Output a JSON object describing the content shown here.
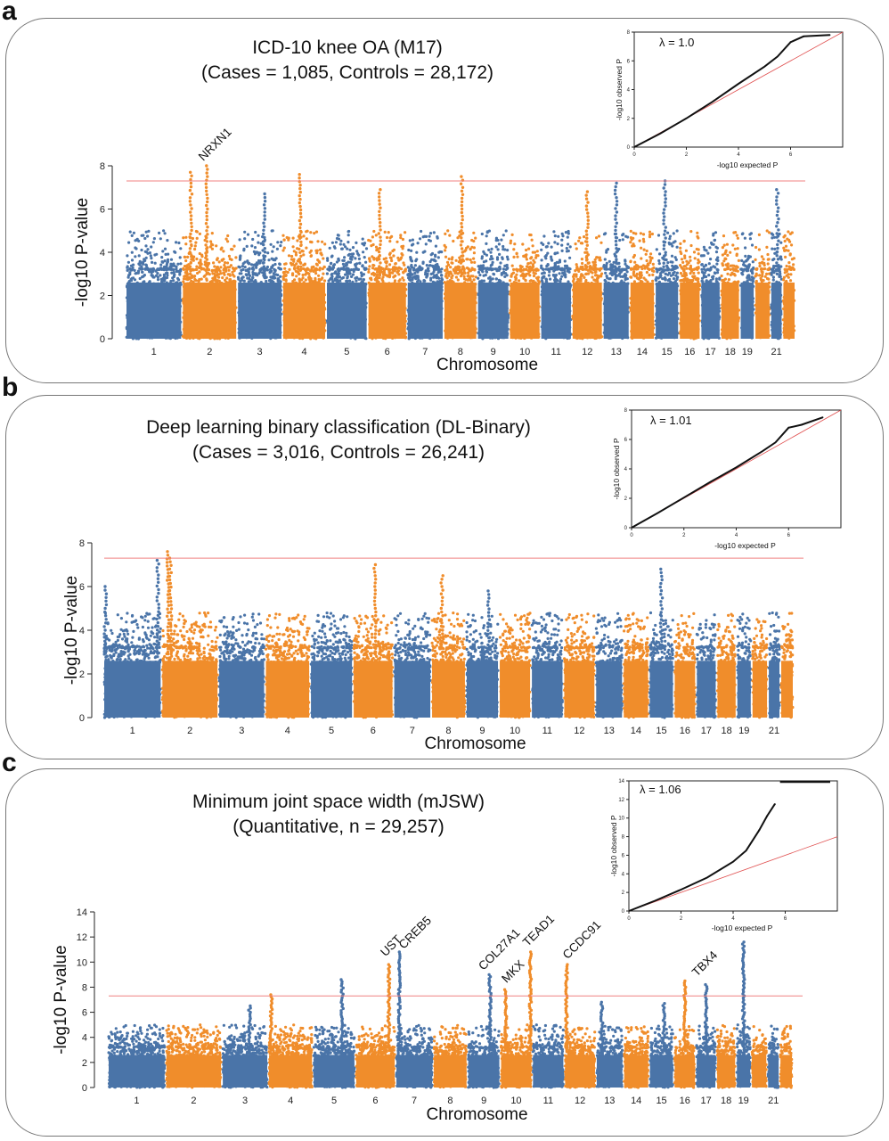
{
  "chart_data": [
    {
      "panel_label": "a",
      "type": "scatter",
      "subtype": "manhattan",
      "title": "ICD-10 knee OA (M17)",
      "subtitle": "(Cases = 1,085, Controls = 28,172)",
      "xlabel": "Chromosome",
      "ylabel": "-log10 P-value",
      "ylim": [
        0,
        8
      ],
      "yticks": [
        0,
        2,
        4,
        6,
        8
      ],
      "x_tick_labels": [
        "1",
        "2",
        "3",
        "4",
        "5",
        "6",
        "7",
        "8",
        "9",
        "10",
        "11",
        "12",
        "13",
        "14",
        "15",
        "16",
        "17",
        "18",
        "19",
        "21"
      ],
      "significance_threshold": 7.3,
      "series_colors": [
        "#4a74a8",
        "#f08d2b"
      ],
      "baseline_max": 5.0,
      "peaks": [
        {
          "chromosome": "2",
          "position": 0.15,
          "value": 7.7
        },
        {
          "chromosome": "2",
          "position": 0.45,
          "value": 8.0
        },
        {
          "chromosome": "4",
          "position": 0.4,
          "value": 7.6
        },
        {
          "chromosome": "8",
          "position": 0.55,
          "value": 7.5
        },
        {
          "chromosome": "13",
          "position": 0.5,
          "value": 7.2
        },
        {
          "chromosome": "15",
          "position": 0.4,
          "value": 7.3
        },
        {
          "chromosome": "3",
          "position": 0.6,
          "value": 6.7
        },
        {
          "chromosome": "6",
          "position": 0.3,
          "value": 6.9
        },
        {
          "chromosome": "12",
          "position": 0.5,
          "value": 6.8
        },
        {
          "chromosome": "21",
          "position": 0.6,
          "value": 6.9
        }
      ],
      "gene_labels": [
        {
          "text": "NRXN1",
          "chromosome": "2",
          "position": 0.45,
          "value": 8.2
        }
      ],
      "qq_plot": {
        "lambda_label": "λ = 1.0",
        "xlabel": "-log10 expected P",
        "ylabel": "-log10 observed P",
        "axis_max": 8,
        "xticks": [
          0,
          2,
          4,
          6
        ],
        "yticks": [
          0,
          2,
          4,
          6,
          8
        ],
        "curve": [
          [
            0,
            0
          ],
          [
            1,
            0.95
          ],
          [
            2,
            2.0
          ],
          [
            3,
            3.15
          ],
          [
            4,
            4.4
          ],
          [
            5,
            5.6
          ],
          [
            5.5,
            6.3
          ],
          [
            6,
            7.3
          ],
          [
            6.5,
            7.7
          ],
          [
            7.5,
            7.8
          ]
        ]
      }
    },
    {
      "panel_label": "b",
      "type": "scatter",
      "subtype": "manhattan",
      "title": "Deep learning binary classification (DL-Binary)",
      "subtitle": "(Cases = 3,016, Controls = 26,241)",
      "xlabel": "Chromosome",
      "ylabel": "-log10 P-value",
      "ylim": [
        0,
        8
      ],
      "yticks": [
        0,
        2,
        4,
        6,
        8
      ],
      "x_tick_labels": [
        "1",
        "2",
        "3",
        "4",
        "5",
        "6",
        "7",
        "8",
        "9",
        "10",
        "11",
        "12",
        "13",
        "14",
        "15",
        "16",
        "17",
        "18",
        "19",
        "21"
      ],
      "significance_threshold": 7.3,
      "series_colors": [
        "#4a74a8",
        "#f08d2b"
      ],
      "baseline_max": 4.8,
      "peaks": [
        {
          "chromosome": "1",
          "position": 0.95,
          "value": 7.2
        },
        {
          "chromosome": "2",
          "position": 0.1,
          "value": 7.6
        },
        {
          "chromosome": "2",
          "position": 0.15,
          "value": 7.3
        },
        {
          "chromosome": "6",
          "position": 0.55,
          "value": 7.0
        },
        {
          "chromosome": "8",
          "position": 0.3,
          "value": 6.5
        },
        {
          "chromosome": "15",
          "position": 0.5,
          "value": 6.8
        },
        {
          "chromosome": "1",
          "position": 0.02,
          "value": 6.0
        },
        {
          "chromosome": "9",
          "position": 0.7,
          "value": 5.8
        }
      ],
      "gene_labels": [],
      "qq_plot": {
        "lambda_label": "λ = 1.01",
        "xlabel": "-log10 expected P",
        "ylabel": "-log10 observed P",
        "axis_max": 8,
        "xticks": [
          0,
          2,
          4,
          6
        ],
        "yticks": [
          0,
          2,
          4,
          6,
          8
        ],
        "curve": [
          [
            0,
            0
          ],
          [
            1,
            1.0
          ],
          [
            2,
            2.05
          ],
          [
            3,
            3.1
          ],
          [
            4,
            4.1
          ],
          [
            5,
            5.2
          ],
          [
            5.5,
            5.8
          ],
          [
            6,
            6.8
          ],
          [
            6.5,
            7.0
          ],
          [
            7.3,
            7.5
          ]
        ]
      }
    },
    {
      "panel_label": "c",
      "type": "scatter",
      "subtype": "manhattan",
      "title": "Minimum joint space width (mJSW)",
      "subtitle": "(Quantitative, n = 29,257)",
      "xlabel": "Chromosome",
      "ylabel": "-log10 P-value",
      "ylim": [
        0,
        14
      ],
      "yticks": [
        0,
        2,
        4,
        6,
        8,
        10,
        12,
        14
      ],
      "x_tick_labels": [
        "1",
        "2",
        "3",
        "4",
        "5",
        "6",
        "7",
        "8",
        "9",
        "10",
        "11",
        "12",
        "13",
        "14",
        "15",
        "16",
        "17",
        "18",
        "19",
        "21"
      ],
      "significance_threshold": 7.3,
      "series_colors": [
        "#4a74a8",
        "#f08d2b"
      ],
      "baseline_max": 5.0,
      "peaks": [
        {
          "chromosome": "6",
          "position": 0.85,
          "value": 9.8
        },
        {
          "chromosome": "7",
          "position": 0.08,
          "value": 10.8
        },
        {
          "chromosome": "9",
          "position": 0.7,
          "value": 9.0
        },
        {
          "chromosome": "10",
          "position": 0.15,
          "value": 7.8
        },
        {
          "chromosome": "10",
          "position": 0.97,
          "value": 10.8
        },
        {
          "chromosome": "12",
          "position": 0.05,
          "value": 9.8
        },
        {
          "chromosome": "16",
          "position": 0.5,
          "value": 8.5
        },
        {
          "chromosome": "19",
          "position": 0.5,
          "value": 11.6
        },
        {
          "chromosome": "5",
          "position": 0.7,
          "value": 8.6
        },
        {
          "chromosome": "4",
          "position": 0.05,
          "value": 7.4
        },
        {
          "chromosome": "3",
          "position": 0.6,
          "value": 6.5
        },
        {
          "chromosome": "13",
          "position": 0.2,
          "value": 6.8
        },
        {
          "chromosome": "15",
          "position": 0.6,
          "value": 6.7
        },
        {
          "chromosome": "17",
          "position": 0.5,
          "value": 8.2
        }
      ],
      "gene_labels": [
        {
          "text": "UST",
          "chromosome": "6",
          "position": 0.85,
          "value": 10.4
        },
        {
          "text": "CREB5",
          "chromosome": "7",
          "position": 0.3,
          "value": 11.0
        },
        {
          "text": "COL27A1",
          "chromosome": "9",
          "position": 0.6,
          "value": 9.3
        },
        {
          "text": "MKX",
          "chromosome": "10",
          "position": 0.3,
          "value": 8.3
        },
        {
          "text": "TEAD1",
          "chromosome": "10",
          "position": 1.0,
          "value": 11.2
        },
        {
          "text": "CCDC91",
          "chromosome": "12",
          "position": 0.2,
          "value": 10.2
        },
        {
          "text": "TBX4",
          "chromosome": "17",
          "position": 0.2,
          "value": 8.8
        }
      ],
      "qq_plot": {
        "lambda_label": "λ = 1.06",
        "xlabel": "-log10 expected P",
        "ylabel": "-log10 observed P",
        "axis_max": 14,
        "xmax": 8,
        "xticks": [
          0,
          2,
          4,
          6
        ],
        "yticks": [
          0,
          2,
          4,
          6,
          8,
          10,
          12,
          14
        ],
        "curve": [
          [
            0,
            0
          ],
          [
            1,
            1.1
          ],
          [
            2,
            2.3
          ],
          [
            3,
            3.6
          ],
          [
            4,
            5.3
          ],
          [
            4.5,
            6.5
          ],
          [
            5,
            8.7
          ],
          [
            5.3,
            10.2
          ],
          [
            5.6,
            11.5
          ]
        ],
        "top_band_start": 5.8
      }
    }
  ]
}
